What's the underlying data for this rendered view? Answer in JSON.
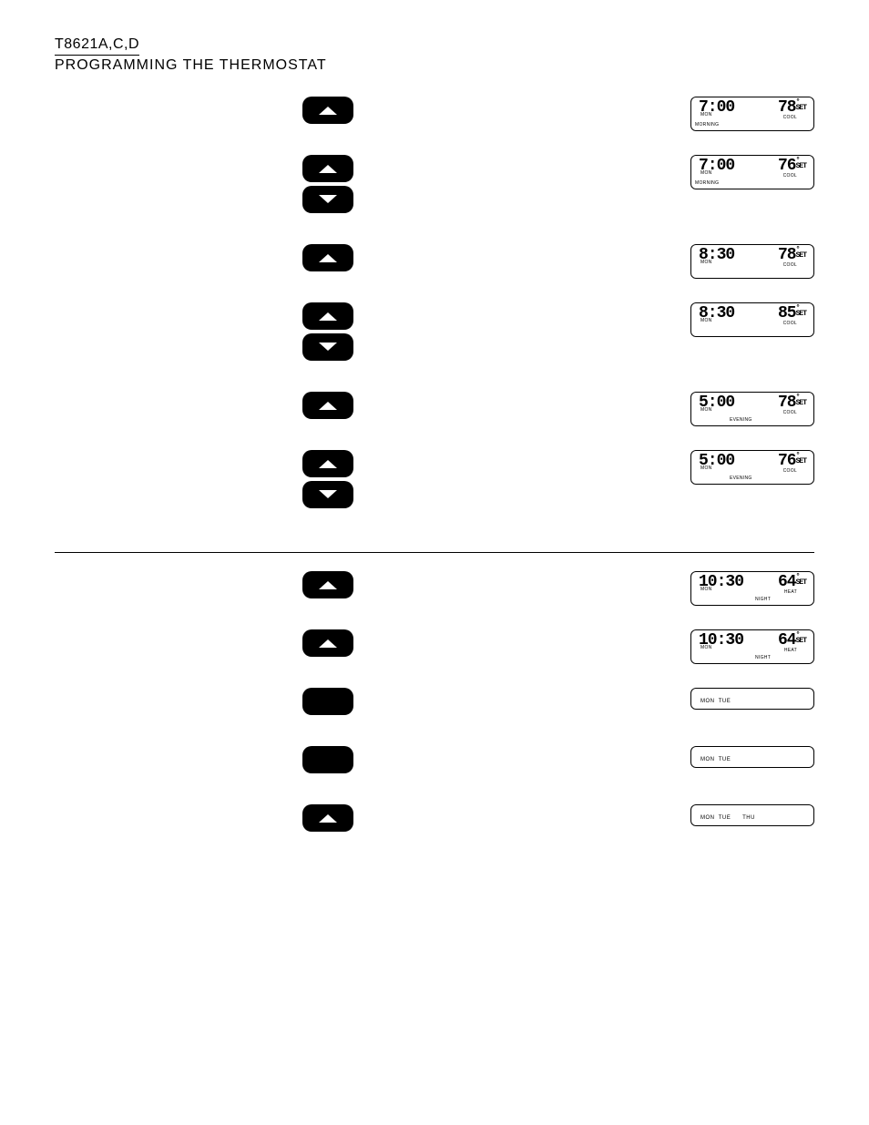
{
  "header": {
    "model": "T8621A,C,D",
    "section": "PROGRAMMING THE THERMOSTAT"
  },
  "rows_top": [
    {
      "buttons": [
        "up"
      ],
      "display": {
        "time": "7:00",
        "day": "MON",
        "period_left": "MORNING",
        "mode": "COOL",
        "temp": "78"
      }
    },
    {
      "buttons": [
        "up",
        "down"
      ],
      "display": {
        "time": "7:00",
        "day": "MON",
        "period_left": "MORNING",
        "mode": "COOL",
        "temp": "76"
      }
    },
    {
      "buttons": [
        "up"
      ],
      "display": {
        "time": "8:30",
        "day": "MON",
        "mode": "COOL",
        "temp": "78"
      }
    },
    {
      "buttons": [
        "up",
        "down"
      ],
      "display": {
        "time": "8:30",
        "day": "MON",
        "mode": "COOL",
        "temp": "85"
      }
    },
    {
      "buttons": [
        "up"
      ],
      "display": {
        "time": "5:00",
        "day": "MON",
        "period_mid": "EVENING",
        "mode": "COOL",
        "temp": "78"
      }
    },
    {
      "buttons": [
        "up",
        "down"
      ],
      "display": {
        "time": "5:00",
        "day": "MON",
        "period_mid": "EVENING",
        "mode": "COOL",
        "temp": "76"
      }
    }
  ],
  "rows_bottom": [
    {
      "buttons": [
        "up"
      ],
      "display": {
        "time": "10:30",
        "day": "MON",
        "period_right": "NIGHT",
        "mode": "HEAT",
        "temp": "64"
      }
    },
    {
      "buttons": [
        "up"
      ],
      "display": {
        "time": "10:30",
        "day": "MON",
        "period_right": "NIGHT",
        "mode": "HEAT",
        "temp": "64"
      }
    },
    {
      "buttons": [
        "blank"
      ],
      "display_short": {
        "days": "MON  TUE"
      }
    },
    {
      "buttons": [
        "blank"
      ],
      "display_short": {
        "days": "MON  TUE"
      }
    },
    {
      "buttons": [
        "up"
      ],
      "display_short": {
        "days": "MON  TUE      THU"
      }
    }
  ]
}
